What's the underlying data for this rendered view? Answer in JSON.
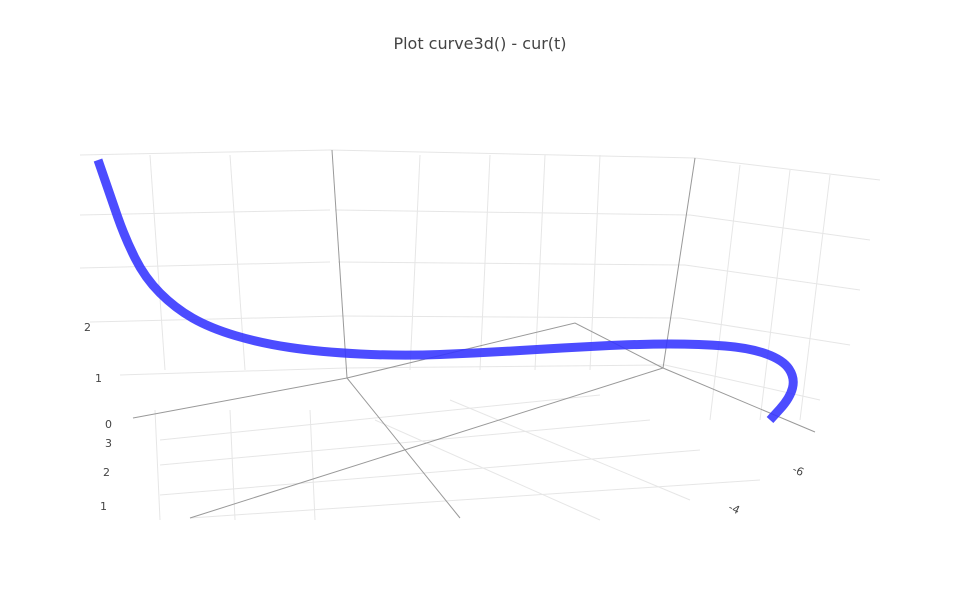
{
  "chart_data": {
    "type": "line3d",
    "title": "Plot curve3d() - cur(t)",
    "z_axis": {
      "tick_labels": [
        "0",
        "1",
        "2"
      ]
    },
    "y_axis": {
      "tick_labels": [
        "1",
        "2",
        "3"
      ]
    },
    "x_axis": {
      "tick_labels": [
        "-4",
        "-6"
      ]
    },
    "series": [
      {
        "color": "#3333ff",
        "mode": "lines"
      }
    ],
    "grid": true
  }
}
